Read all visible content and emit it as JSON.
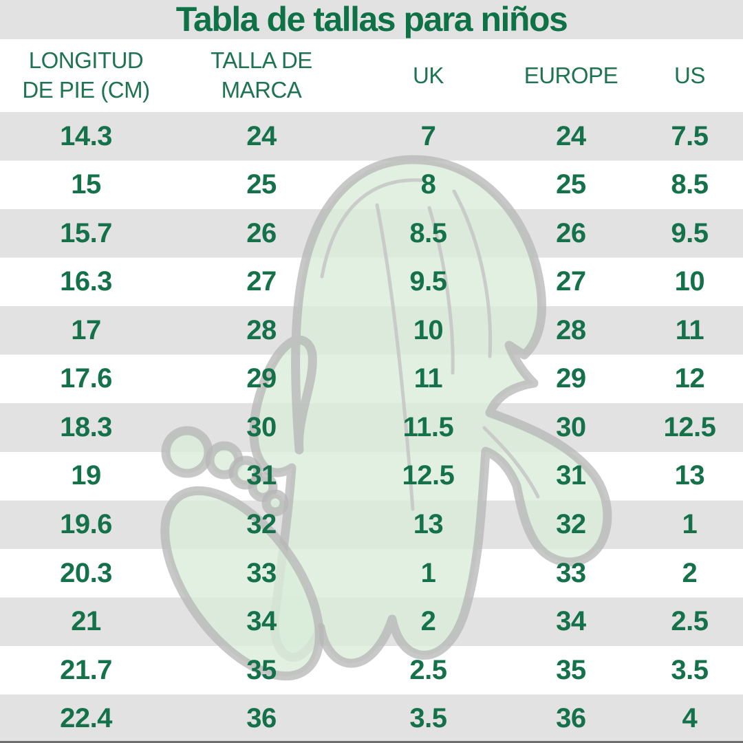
{
  "chart_data": {
    "type": "table",
    "title": "Tabla de tallas para niños",
    "columns": [
      {
        "key": "foot-length-cm",
        "label": "LONGITUD\nDE PIE (CM)"
      },
      {
        "key": "brand-size",
        "label": "TALLA DE\nMARCA"
      },
      {
        "key": "uk",
        "label": "UK"
      },
      {
        "key": "europe",
        "label": "EUROPE"
      },
      {
        "key": "us",
        "label": "US"
      }
    ],
    "rows": [
      [
        "14.3",
        "24",
        "7",
        "24",
        "7.5"
      ],
      [
        "15",
        "25",
        "8",
        "25",
        "8.5"
      ],
      [
        "15.7",
        "26",
        "8.5",
        "26",
        "9.5"
      ],
      [
        "16.3",
        "27",
        "9.5",
        "27",
        "10"
      ],
      [
        "17",
        "28",
        "10",
        "28",
        "11"
      ],
      [
        "17.6",
        "29",
        "11",
        "29",
        "12"
      ],
      [
        "18.3",
        "30",
        "11.5",
        "30",
        "12.5"
      ],
      [
        "19",
        "31",
        "12.5",
        "31",
        "13"
      ],
      [
        "19.6",
        "32",
        "13",
        "32",
        "1"
      ],
      [
        "20.3",
        "33",
        "1",
        "33",
        "2"
      ],
      [
        "21",
        "34",
        "2",
        "34",
        "2.5"
      ],
      [
        "21.7",
        "35",
        "2.5",
        "35",
        "3.5"
      ],
      [
        "22.4",
        "36",
        "3.5",
        "36",
        "4"
      ]
    ],
    "layout": {
      "striped_rows": true,
      "first_data_row_shaded": true
    }
  },
  "colors": {
    "text_green": "#15714a",
    "header_green": "#1e7352",
    "title_green": "#0e7246",
    "band_gray": "#e2e2e2",
    "watermark_fill": "#d9ecd9",
    "watermark_outline": "#b5b5b5"
  },
  "watermark": {
    "description": "light green baby foot and footprint illustration behind table"
  }
}
